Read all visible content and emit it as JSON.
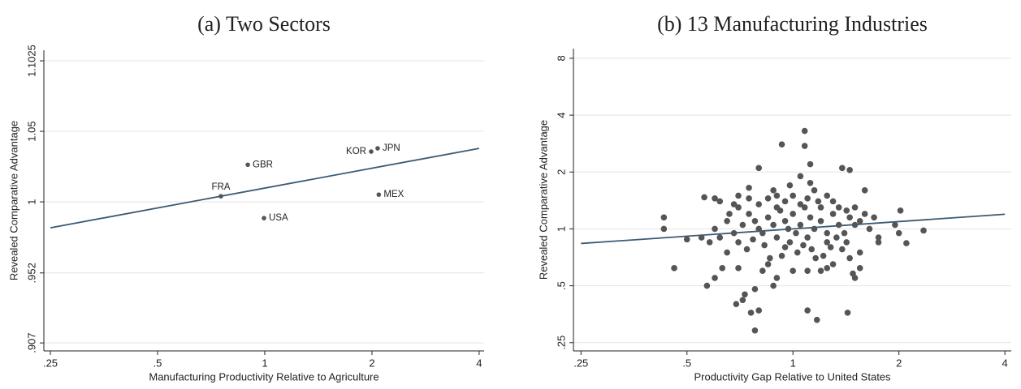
{
  "chart_data": [
    {
      "type": "scatter",
      "subtitle": "(a) Two Sectors",
      "x_label": "Manufacturing Productivity Relative to Agriculture",
      "y_label": "Revealed Comparative Advantage",
      "xscale": "log",
      "yscale": "log",
      "grid": true,
      "xlim": [
        0.2397,
        4.13
      ],
      "ylim": [
        0.902,
        1.1106
      ],
      "xticks": [
        {
          "value": 0.25,
          "label": ".25"
        },
        {
          "value": 0.5,
          "label": ".5"
        },
        1,
        2,
        4
      ],
      "yticks": [
        {
          "value": 0.907,
          "label": ".907"
        },
        {
          "value": 0.952,
          "label": ".952"
        },
        1,
        1.05,
        1.1025
      ],
      "series": [
        {
          "color": "#555555",
          "x": [
            0.753,
            0.896,
            0.995,
            1.99,
            2.075,
            2.09
          ],
          "values": [
            1.0039,
            1.026,
            0.9888,
            1.0354,
            1.0377,
            1.005
          ],
          "point_labels": [
            "FRA",
            "GBR",
            "USA",
            "KOR",
            "JPN",
            "MEX"
          ],
          "label_position": [
            "above",
            "right",
            "right",
            "left",
            "right",
            "right"
          ]
        }
      ],
      "fit_line": {
        "color": "#3b5b75",
        "x": [
          0.25,
          4
        ],
        "values": [
          0.9822,
          1.0377
        ]
      }
    },
    {
      "type": "scatter",
      "subtitle": "(b) 13 Manufacturing Industries",
      "x_label": "Productivity Gap Relative to United States",
      "y_label": "Revealed Comparative Advantage",
      "xscale": "log",
      "yscale": "log",
      "grid": true,
      "xlim": [
        0.238,
        4.17
      ],
      "ylim": [
        0.226,
        9.0
      ],
      "xticks": [
        {
          "value": 0.25,
          "label": ".25"
        },
        {
          "value": 0.5,
          "label": ".5"
        },
        1,
        2,
        4
      ],
      "yticks": [
        {
          "value": 0.25,
          "label": ".25"
        },
        {
          "value": 0.5,
          "label": ".5"
        },
        1,
        2,
        4,
        8
      ],
      "series": [
        {
          "color": "#555555",
          "x": [
            1.08,
            0.93,
            1.08,
            1.12,
            0.8,
            1.38,
            1.45,
            0.78,
            0.76,
            0.8,
            1.1,
            1.17,
            1.43,
            0.69,
            0.72,
            0.73,
            0.46,
            0.43,
            0.43,
            2.35,
            2.1,
            2.02,
            2.0,
            1.95,
            1.75,
            1.75,
            0.57,
            0.6,
            0.55,
            0.5,
            0.56,
            0.6,
            0.62,
            0.65,
            1.5,
            1.55,
            1.48,
            1.6,
            1.55,
            1.25,
            1.2,
            1.3,
            0.85,
            0.9,
            1.0,
            0.95,
            1.05,
            0.9,
            0.75,
            0.7,
            0.75,
            0.78,
            0.8,
            0.82,
            0.85,
            0.88,
            0.9,
            0.92,
            0.95,
            0.97,
            1.0,
            1.02,
            1.05,
            1.08,
            1.1,
            1.12,
            1.15,
            1.18,
            1.2,
            1.25,
            1.3,
            1.35,
            1.4,
            1.45,
            1.5,
            1.55,
            1.6,
            1.65,
            1.7,
            0.65,
            0.68,
            0.7,
            0.72,
            0.62,
            0.6,
            0.58,
            0.66,
            0.74,
            0.77,
            0.83,
            0.86,
            0.93,
            0.98,
            1.03,
            1.07,
            1.13,
            1.16,
            1.22,
            1.28,
            1.33,
            1.38,
            1.42,
            0.8,
            0.85,
            0.9,
            0.95,
            1.0,
            1.05,
            1.1,
            1.15,
            1.2,
            1.25,
            1.3,
            0.75,
            0.7,
            0.68,
            0.88,
            0.98,
            1.12,
            1.35,
            1.42,
            1.5,
            0.63,
            0.7,
            0.88,
            0.78,
            0.82,
            1.1,
            1.25,
            1.45
          ],
          "values": [
            3.3,
            2.8,
            2.75,
            2.2,
            2.1,
            2.1,
            2.05,
            0.29,
            0.36,
            0.37,
            0.37,
            0.33,
            0.36,
            0.4,
            0.42,
            0.45,
            0.62,
            1.15,
            1.0,
            0.98,
            0.84,
            1.25,
            0.95,
            1.05,
            0.9,
            0.85,
            0.5,
            0.55,
            0.9,
            0.88,
            1.47,
            1.45,
            1.4,
            0.75,
            0.55,
            0.62,
            0.58,
            1.6,
            0.75,
            0.95,
            0.6,
            0.65,
            0.65,
            0.55,
            0.6,
            0.8,
            1.9,
            1.5,
            1.65,
            1.3,
            1.2,
            1.1,
            1.0,
            0.95,
            1.15,
            1.05,
            0.9,
            1.25,
            1.1,
            1.0,
            1.2,
            0.95,
            1.05,
            1.3,
            0.9,
            1.15,
            1.0,
            1.4,
            1.1,
            0.85,
            1.2,
            1.05,
            0.95,
            1.15,
            1.3,
            1.1,
            1.2,
            1.0,
            1.15,
            1.1,
            0.95,
            0.85,
            1.05,
            0.9,
            1.0,
            0.85,
            1.2,
            0.78,
            0.88,
            0.82,
            0.7,
            0.72,
            0.85,
            0.75,
            0.82,
            0.78,
            0.7,
            0.72,
            0.8,
            0.9,
            0.78,
            0.85,
            1.35,
            1.45,
            1.3,
            1.4,
            1.5,
            1.35,
            1.45,
            1.6,
            1.3,
            1.5,
            1.4,
            1.45,
            1.5,
            1.35,
            1.6,
            1.7,
            1.75,
            1.3,
            1.25,
            1.05,
            0.62,
            0.62,
            0.5,
            0.48,
            0.6,
            0.6,
            0.62,
            0.7
          ]
        }
      ],
      "fit_line": {
        "color": "#3b5b75",
        "x": [
          0.25,
          4
        ],
        "values": [
          0.837,
          1.195
        ]
      }
    }
  ]
}
